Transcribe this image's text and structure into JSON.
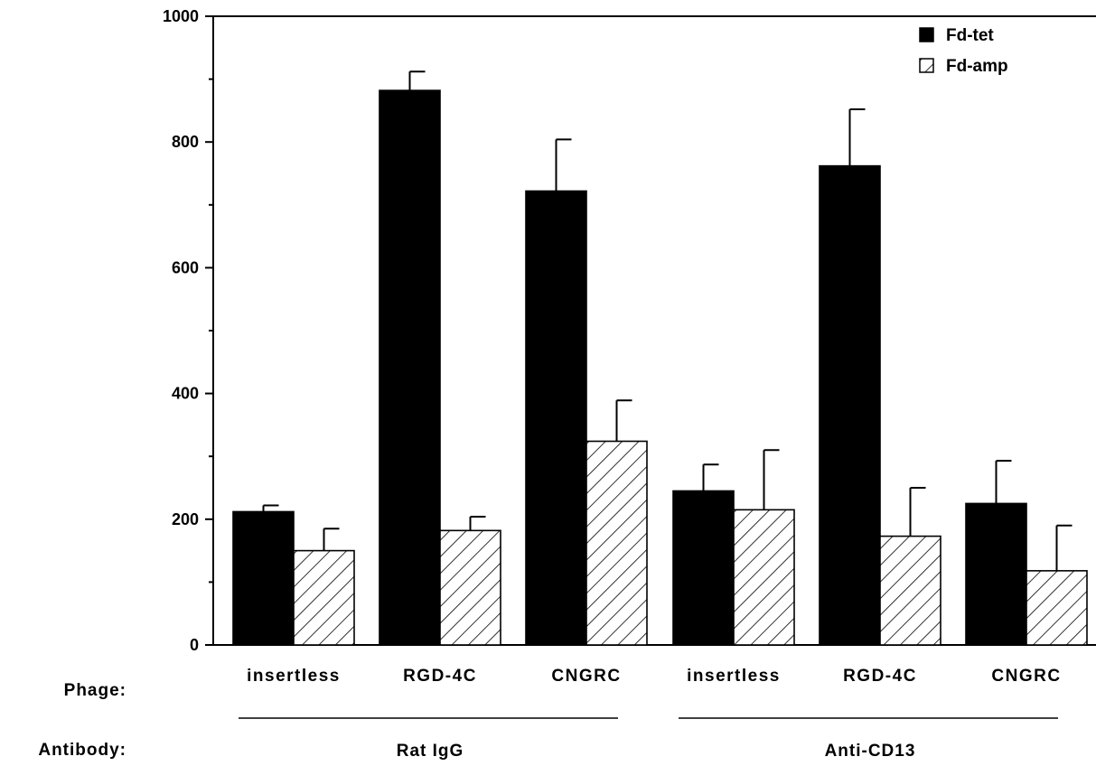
{
  "chart_data": {
    "type": "bar",
    "title": "",
    "xlabel": "",
    "ylabel": "",
    "ylim": [
      0,
      1000
    ],
    "yticks": [
      0,
      200,
      400,
      600,
      800,
      1000
    ],
    "grid": false,
    "legend_position": "top-right",
    "categories": [
      "insertless",
      "RGD-4C",
      "CNGRC",
      "insertless",
      "RGD-4C",
      "CNGRC"
    ],
    "series": [
      {
        "name": "Fd-tet",
        "fill": "solid",
        "color": "#000000",
        "values": [
          212,
          882,
          722,
          245,
          762,
          225
        ],
        "errors": [
          10,
          30,
          82,
          42,
          90,
          68
        ]
      },
      {
        "name": "Fd-amp",
        "fill": "hatched",
        "color": "#000000",
        "values": [
          150,
          182,
          324,
          215,
          173,
          118
        ],
        "errors": [
          35,
          22,
          65,
          95,
          77,
          72
        ]
      }
    ],
    "row_labels": {
      "phage": "Phage:",
      "antibody": "Antibody:"
    },
    "groups": [
      {
        "label": "Rat  IgG",
        "categories": [
          0,
          1,
          2
        ]
      },
      {
        "label": "Anti-CD13",
        "categories": [
          3,
          4,
          5
        ]
      }
    ]
  }
}
